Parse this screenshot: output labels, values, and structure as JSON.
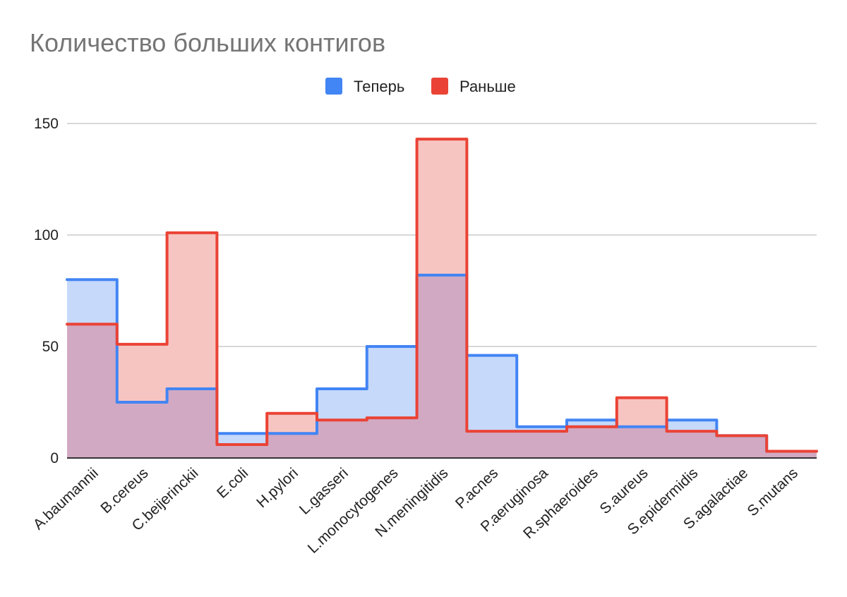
{
  "chart_data": {
    "type": "area",
    "step": true,
    "title": "Количество больших контигов",
    "categories": [
      "A.baumannii",
      "B.cereus",
      "C.beijerinckii",
      "E.coli",
      "H.pylori",
      "L.gasseri",
      "L.monocytogenes",
      "N.meningitidis",
      "P.acnes",
      "P.aeruginosa",
      "R.sphaeroides",
      "S.aureus",
      "S.epidermidis",
      "S.agalactiae",
      "S.mutans"
    ],
    "series": [
      {
        "name": "Теперь",
        "color": "#4285f4",
        "fill": "#c6d9fb",
        "values": [
          80,
          25,
          31,
          11,
          11,
          31,
          50,
          82,
          46,
          14,
          17,
          14,
          17,
          10,
          3
        ]
      },
      {
        "name": "Раньше",
        "color": "#ea4335",
        "fill": "#f7c5c1",
        "values": [
          60,
          51,
          101,
          6,
          20,
          17,
          18,
          143,
          12,
          12,
          14,
          27,
          12,
          10,
          3
        ]
      }
    ],
    "overlap_fill": "#d1a9c3",
    "ylim": [
      0,
      150
    ],
    "yticks": [
      "0",
      "50",
      "100",
      "150"
    ],
    "grid": true,
    "legend_position": "top-center",
    "xlabel": "",
    "ylabel": ""
  }
}
